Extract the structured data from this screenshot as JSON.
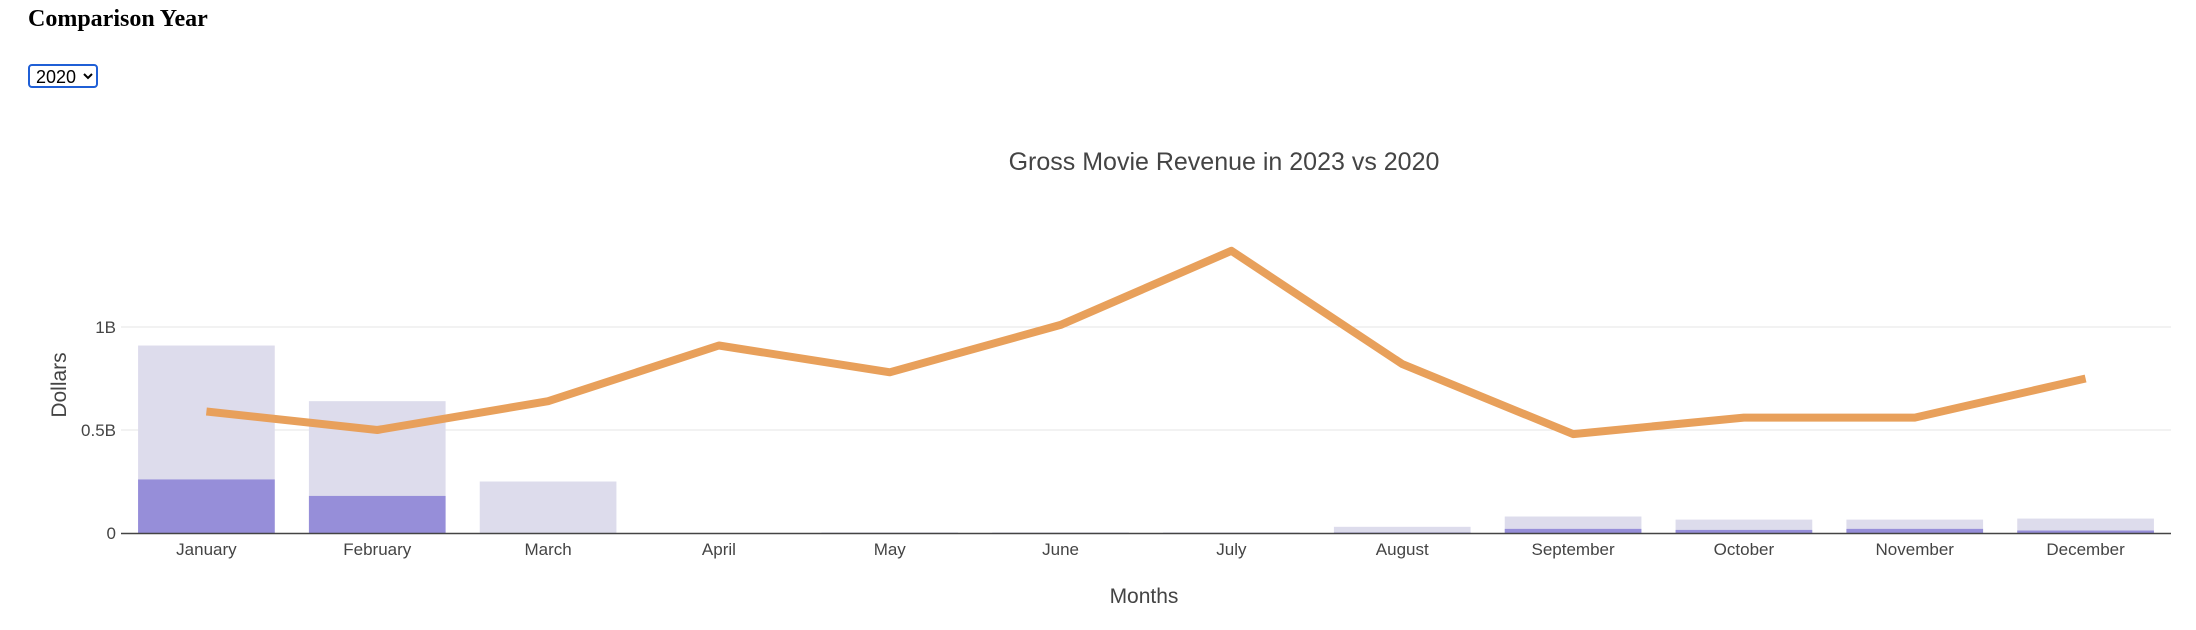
{
  "page": {
    "heading": "Comparison Year",
    "year_select": {
      "value": "2020",
      "options": [
        "2020"
      ]
    }
  },
  "colors": {
    "bar_background": "#dddcec",
    "bar_foreground": "#968ed9",
    "line": "#e8a05b",
    "grid": "#e6e6e6",
    "axis": "#444444"
  },
  "chart_data": {
    "type": "bar",
    "title": "Gross Movie Revenue in 2023 vs 2020",
    "xlabel": "Months",
    "ylabel": "Dollars",
    "ylim": [
      0,
      1.4
    ],
    "y_ticks": [
      {
        "value": 0,
        "label": "0"
      },
      {
        "value": 0.5,
        "label": "0.5B"
      },
      {
        "value": 1,
        "label": "1B"
      }
    ],
    "categories": [
      "January",
      "February",
      "March",
      "April",
      "May",
      "June",
      "July",
      "August",
      "September",
      "October",
      "November",
      "December"
    ],
    "series": [
      {
        "type": "bar",
        "values": [
          0.91,
          0.64,
          0.25,
          0.0,
          0.003,
          0.003,
          0.003,
          0.03,
          0.08,
          0.065,
          0.065,
          0.07
        ]
      },
      {
        "type": "bar",
        "values": [
          0.26,
          0.18,
          0.0,
          0.0,
          0.0,
          0.0,
          0.0,
          0.002,
          0.02,
          0.015,
          0.02,
          0.012
        ]
      },
      {
        "type": "line",
        "values": [
          0.59,
          0.5,
          0.64,
          0.91,
          0.78,
          1.01,
          1.37,
          0.82,
          0.48,
          0.56,
          0.56,
          0.75
        ]
      }
    ],
    "grid": true
  }
}
